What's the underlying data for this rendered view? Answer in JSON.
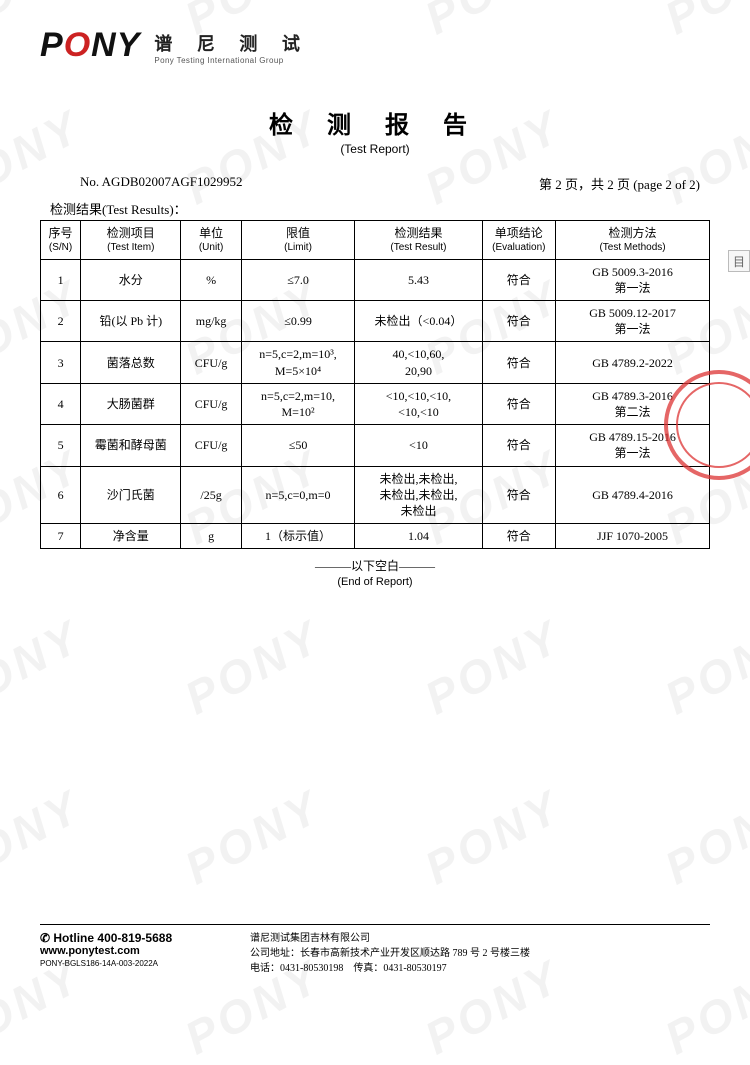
{
  "logo": {
    "mark_pre": "P",
    "mark_o": "O",
    "mark_post": "NY",
    "cn": "谱 尼 测 试",
    "en": "Pony Testing International Group"
  },
  "title": {
    "cn": "检 测 报 告",
    "en": "(Test Report)"
  },
  "meta": {
    "number_label": "No. ",
    "number": "AGDB02007AGF1029952",
    "page_cn": "第 2 页，共 2 页 ",
    "page_en": "(page 2 of 2)"
  },
  "results_label": "检测结果(Test Results)：",
  "table": {
    "columns": [
      {
        "cn": "序号",
        "en": "(S/N)"
      },
      {
        "cn": "检测项目",
        "en": "(Test Item)"
      },
      {
        "cn": "单位",
        "en": "(Unit)"
      },
      {
        "cn": "限值",
        "en": "(Limit)"
      },
      {
        "cn": "检测结果",
        "en": "(Test Result)"
      },
      {
        "cn": "单项结论",
        "en": "(Evaluation)"
      },
      {
        "cn": "检测方法",
        "en": "(Test Methods)"
      }
    ],
    "col_widths": [
      "6%",
      "15%",
      "9%",
      "17%",
      "19%",
      "11%",
      "23%"
    ],
    "rows": [
      {
        "sn": "1",
        "item": "水分",
        "unit": "%",
        "limit": "≤7.0",
        "result": "5.43",
        "eval": "符合",
        "method": "GB 5009.3-2016\n第一法"
      },
      {
        "sn": "2",
        "item": "铅(以 Pb 计)",
        "unit": "mg/kg",
        "limit": "≤0.99",
        "result": "未检出（<0.04）",
        "eval": "符合",
        "method": "GB 5009.12-2017\n第一法"
      },
      {
        "sn": "3",
        "item": "菌落总数",
        "unit": "CFU/g",
        "limit": "n=5,c=2,m=10³,\nM=5×10⁴",
        "result": "40,<10,60,\n20,90",
        "eval": "符合",
        "method": "GB 4789.2-2022"
      },
      {
        "sn": "4",
        "item": "大肠菌群",
        "unit": "CFU/g",
        "limit": "n=5,c=2,m=10,\nM=10²",
        "result": "<10,<10,<10,\n<10,<10",
        "eval": "符合",
        "method": "GB 4789.3-2016\n第二法"
      },
      {
        "sn": "5",
        "item": "霉菌和酵母菌",
        "unit": "CFU/g",
        "limit": "≤50",
        "result": "<10",
        "eval": "符合",
        "method": "GB 4789.15-2016\n第一法"
      },
      {
        "sn": "6",
        "item": "沙门氏菌",
        "unit": "/25g",
        "limit": "n=5,c=0,m=0",
        "result": "未检出,未检出,\n未检出,未检出,\n未检出",
        "eval": "符合",
        "method": "GB 4789.4-2016"
      },
      {
        "sn": "7",
        "item": "净含量",
        "unit": "g",
        "limit": "1（标示值）",
        "result": "1.04",
        "eval": "符合",
        "method": "JJF 1070-2005"
      }
    ]
  },
  "end": {
    "cn": "———以下空白———",
    "en": "(End of Report)"
  },
  "footer": {
    "hotline_label": "✆ Hotline ",
    "hotline": "400-819-5688",
    "website": "www.ponytest.com",
    "code": "PONY-BGLS186-14A-003-2022A",
    "company": "谱尼测试集团吉林有限公司",
    "address_label": "公司地址：",
    "address": "长春市高新技术产业开发区顺达路 789 号 2 号楼三楼",
    "tel_label": "电话：",
    "tel": "0431-80530198",
    "fax_label": "传真：",
    "fax": "0431-80530197"
  },
  "watermark_text": "PONY",
  "colors": {
    "text": "#111111",
    "border": "#000000",
    "watermark": "#f2f2f2",
    "stamp": "#d33333",
    "logo_accent": "#cc2222"
  }
}
